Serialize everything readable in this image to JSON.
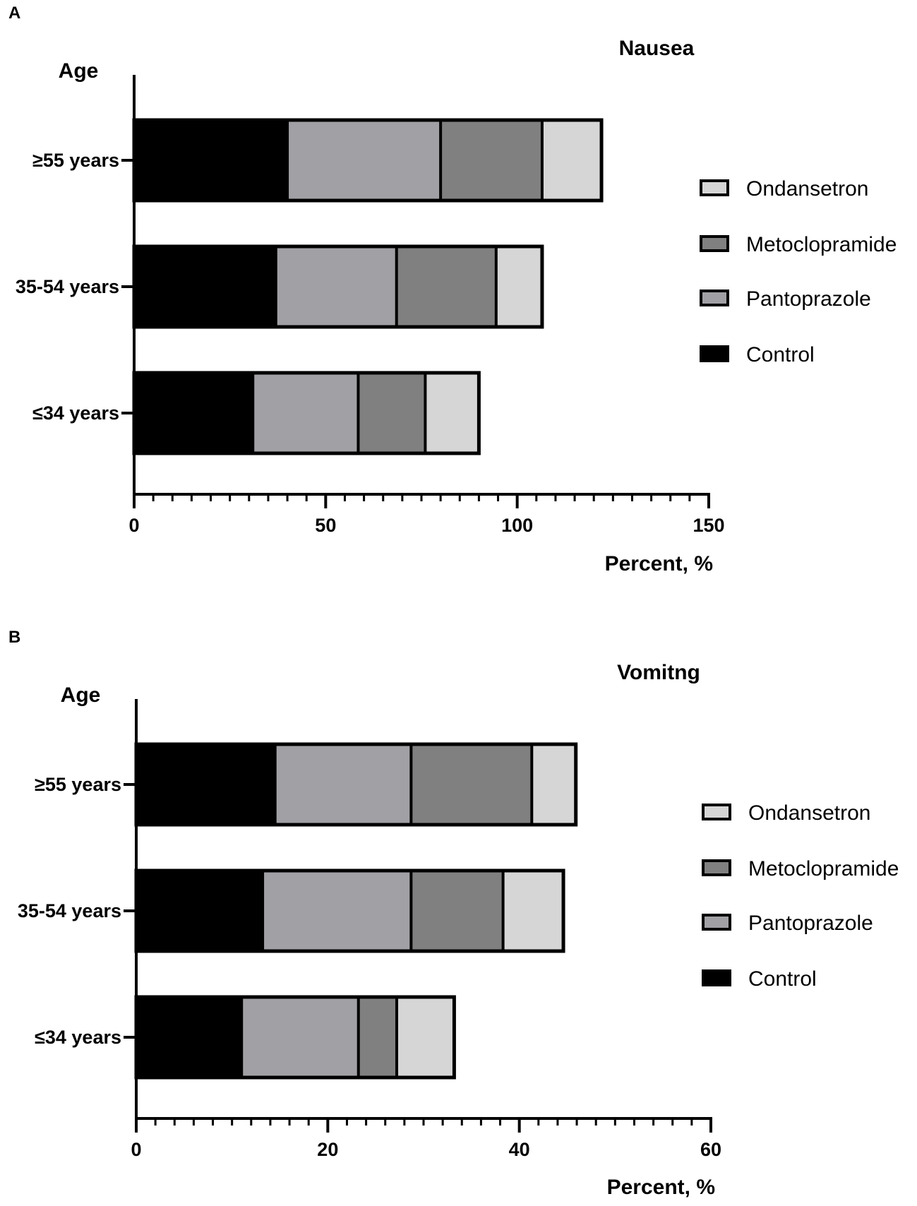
{
  "figure": {
    "series_colors": {
      "Control": "#000000",
      "Pantoprazole": "#a1a1a5",
      "Metoclopramide": "#808080",
      "Ondansetron": "#d6d6d6"
    },
    "outline_color": "#000000"
  },
  "chart_data": [
    {
      "type": "bar",
      "orientation": "horizontal",
      "stacked": true,
      "panel": "A",
      "title": "Nausea",
      "xlabel": "Percent, %",
      "ylabel": "Age",
      "categories": [
        "≥55 years",
        "35-54 years",
        "≤34 years"
      ],
      "series": [
        {
          "name": "Control",
          "values": [
            40,
            37,
            31
          ]
        },
        {
          "name": "Pantoprazole",
          "values": [
            40,
            31.5,
            27.5
          ]
        },
        {
          "name": "Metoclopramide",
          "values": [
            26.5,
            26,
            17.5
          ]
        },
        {
          "name": "Ondansetron",
          "values": [
            15.5,
            12,
            14
          ]
        }
      ],
      "xlim": [
        0,
        150
      ],
      "xticks": [
        "0",
        "50",
        "100",
        "150"
      ],
      "minor_tick_step": 5,
      "legend_order": [
        "Ondansetron",
        "Metoclopramide",
        "Pantoprazole",
        "Control"
      ],
      "legend_position": "right"
    },
    {
      "type": "bar",
      "orientation": "horizontal",
      "stacked": true,
      "panel": "B",
      "title": "Vomitng",
      "xlabel": "Percent, %",
      "ylabel": "Age",
      "categories": [
        "≥55 years",
        "35-54 years",
        "≤34 years"
      ],
      "series": [
        {
          "name": "Control",
          "values": [
            14.5,
            13.2,
            11
          ]
        },
        {
          "name": "Pantoprazole",
          "values": [
            14.2,
            15.5,
            12.2
          ]
        },
        {
          "name": "Metoclopramide",
          "values": [
            12.6,
            9.6,
            4
          ]
        },
        {
          "name": "Ondansetron",
          "values": [
            4.6,
            6.3,
            6
          ]
        }
      ],
      "xlim": [
        0,
        60
      ],
      "xticks": [
        "0",
        "20",
        "40",
        "60"
      ],
      "minor_tick_step": 2,
      "legend_order": [
        "Ondansetron",
        "Metoclopramide",
        "Pantoprazole",
        "Control"
      ],
      "legend_position": "right"
    }
  ]
}
